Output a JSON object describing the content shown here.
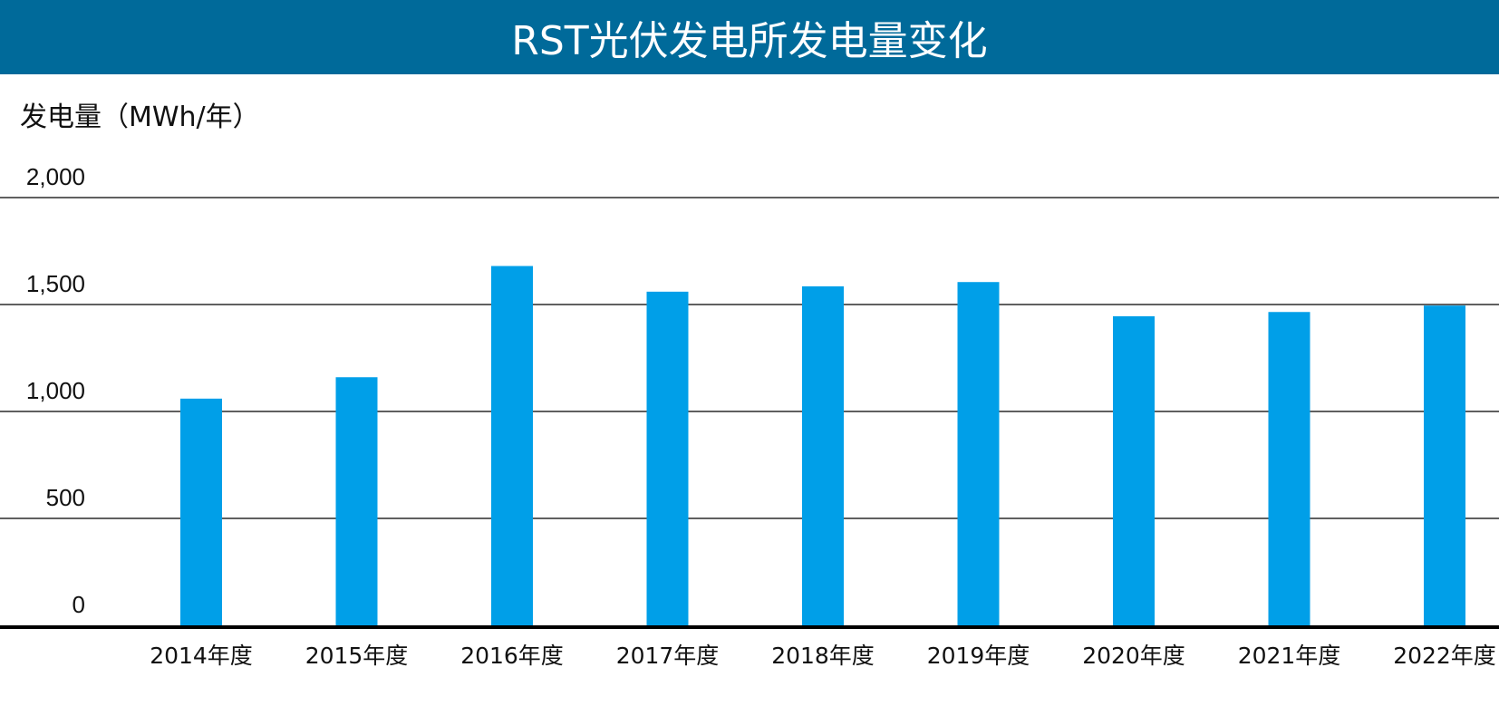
{
  "colors": {
    "header_bg": "#006a9a",
    "bar": "#009fe8",
    "grid": "#000000"
  },
  "chart_data": {
    "type": "bar",
    "title": "RST光伏发电所发电量变化",
    "ylabel": "发电量（MWh/年）",
    "xlabel": "",
    "ylim": [
      0,
      2000
    ],
    "yticks": [
      0,
      500,
      1000,
      1500,
      2000
    ],
    "ytick_labels": [
      "0",
      "500",
      "1,000",
      "1,500",
      "2,000"
    ],
    "grid": true,
    "categories": [
      "2014年度",
      "2015年度",
      "2016年度",
      "2017年度",
      "2018年度",
      "2019年度",
      "2020年度",
      "2021年度",
      "2022年度"
    ],
    "values": [
      1060,
      1160,
      1680,
      1560,
      1585,
      1605,
      1445,
      1465,
      1495
    ]
  }
}
